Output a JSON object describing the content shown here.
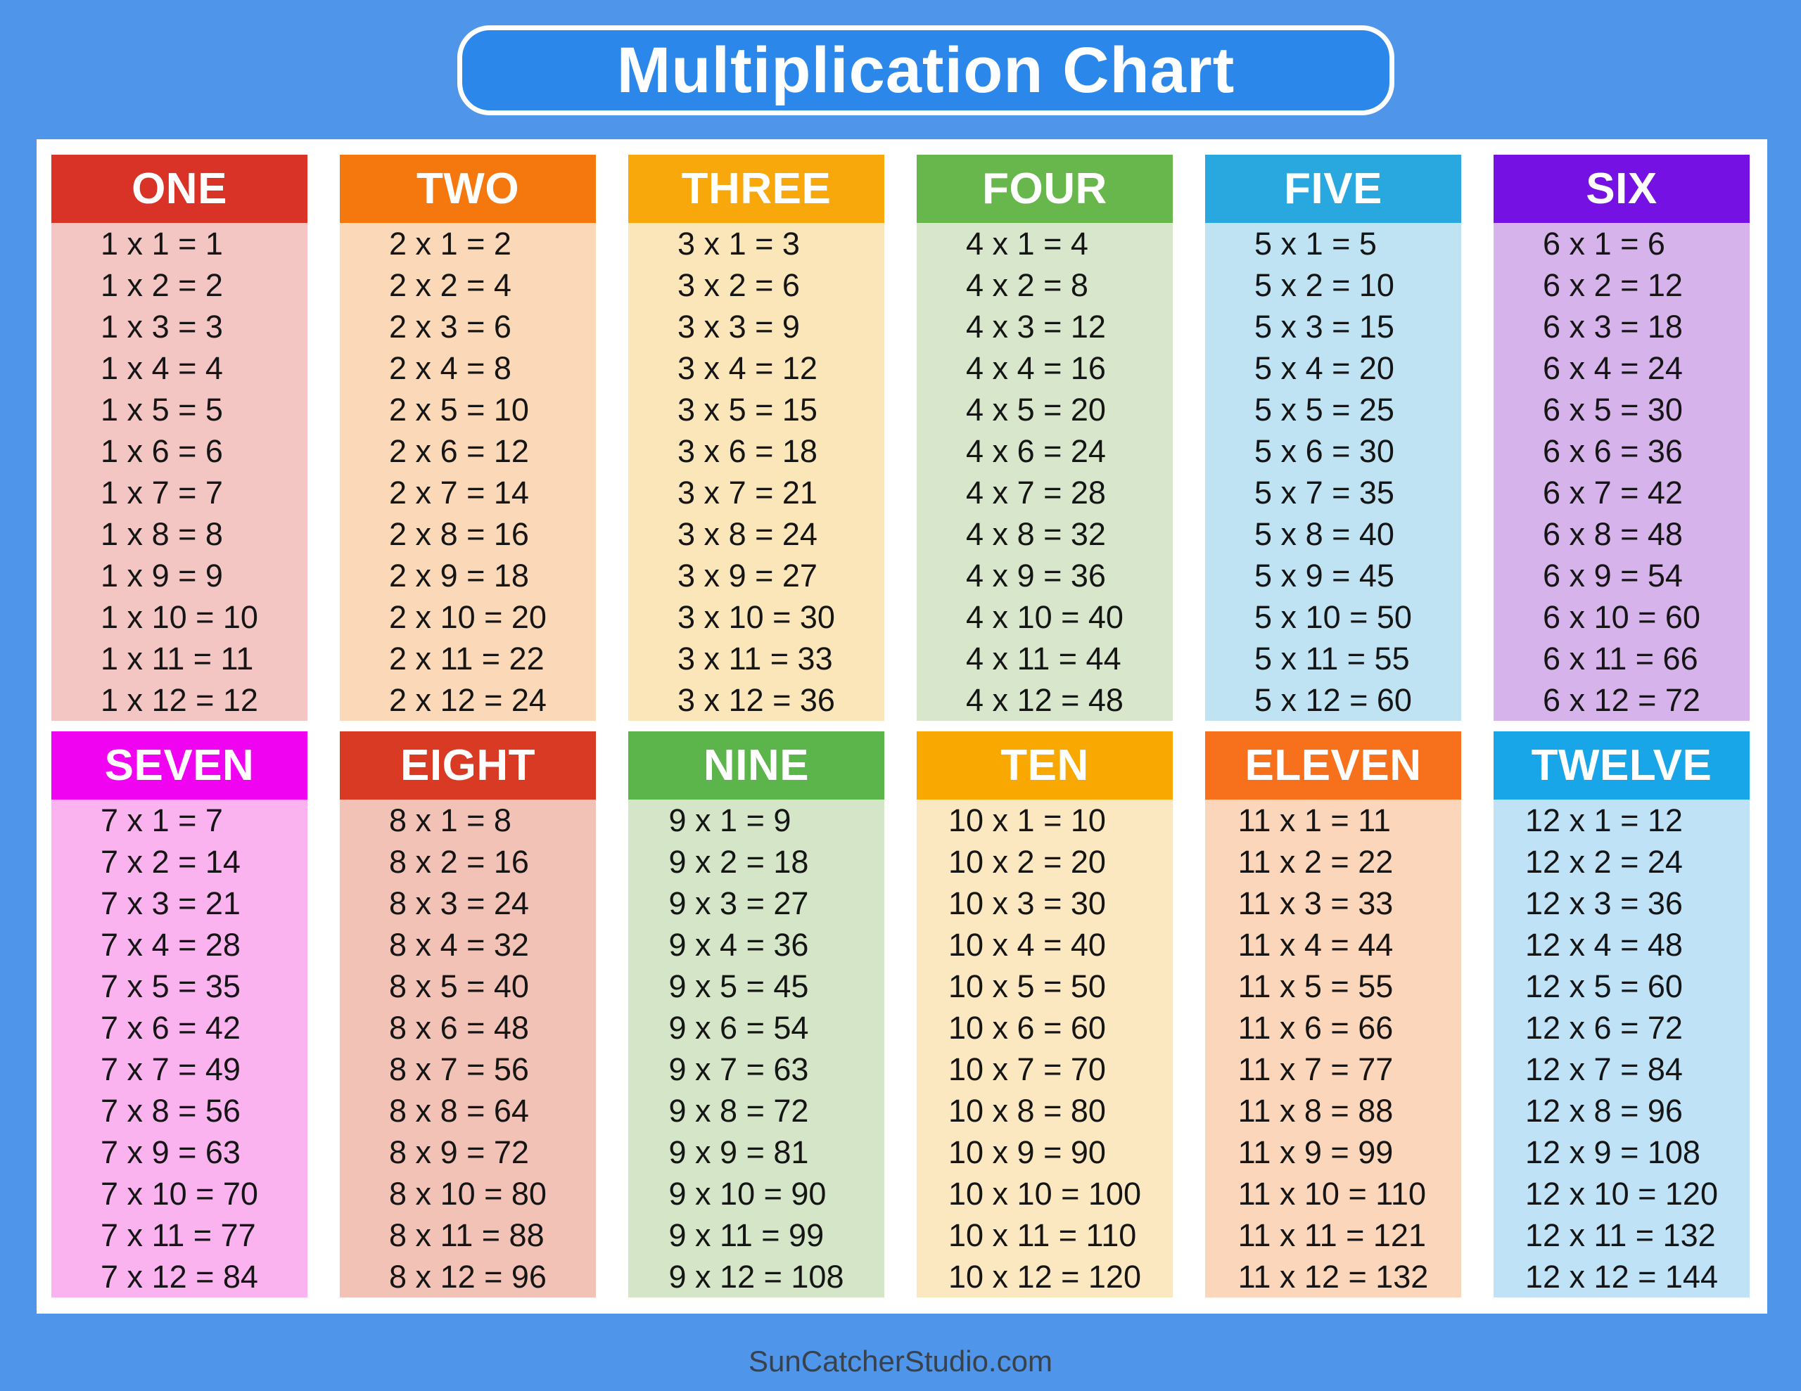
{
  "title": "Multiplication Chart",
  "footer": "SunCatcherStudio.com",
  "colors": {
    "background": "#4f96ea",
    "title_banner": "#2b87ea",
    "title_border": "#ffffff",
    "title_text": "#ffffff",
    "panel": "#ffffff",
    "fact_text": "#151515",
    "header_text": "#ffffff",
    "footer_text": "#39414b"
  },
  "tables": [
    {
      "name": "ONE",
      "header_color": "#d93226",
      "body_color": "#f3c6c4",
      "facts": [
        "1 x 1 = 1",
        "1 x 2 = 2",
        "1 x 3 = 3",
        "1 x 4 = 4",
        "1 x 5 = 5",
        "1 x 6 = 6",
        "1 x 7 = 7",
        "1 x 8 = 8",
        "1 x 9 = 9",
        "1 x 10 = 10",
        "1 x 11 = 11",
        "1 x 12 = 12"
      ]
    },
    {
      "name": "TWO",
      "header_color": "#f5780f",
      "body_color": "#fbd9b8",
      "facts": [
        "2 x 1 = 2",
        "2 x 2 = 4",
        "2 x 3 = 6",
        "2 x 4 = 8",
        "2 x 5 = 10",
        "2 x 6 = 12",
        "2 x 7 = 14",
        "2 x 8 = 16",
        "2 x 9 = 18",
        "2 x 10 = 20",
        "2 x 11 = 22",
        "2 x 12 = 24"
      ]
    },
    {
      "name": "THREE",
      "header_color": "#f8a80b",
      "body_color": "#fbe6ba",
      "facts": [
        "3 x 1 = 3",
        "3 x 2 = 6",
        "3 x 3 = 9",
        "3 x 4 = 12",
        "3 x 5 = 15",
        "3 x 6 = 18",
        "3 x 7 = 21",
        "3 x 8 = 24",
        "3 x 9 = 27",
        "3 x 10 = 30",
        "3 x 11 = 33",
        "3 x 12 = 36"
      ]
    },
    {
      "name": "FOUR",
      "header_color": "#68b74c",
      "body_color": "#d8e7cb",
      "facts": [
        "4 x 1 = 4",
        "4 x 2 = 8",
        "4 x 3 = 12",
        "4 x 4 = 16",
        "4 x 5 = 20",
        "4 x 6 = 24",
        "4 x 7 = 28",
        "4 x 8 = 32",
        "4 x 9 = 36",
        "4 x 10 = 40",
        "4 x 11 = 44",
        "4 x 12 = 48"
      ]
    },
    {
      "name": "FIVE",
      "header_color": "#29a8e0",
      "body_color": "#bfe3f2",
      "facts": [
        "5 x 1 = 5",
        "5 x 2 = 10",
        "5 x 3 = 15",
        "5 x 4 = 20",
        "5 x 5 = 25",
        "5 x 6 = 30",
        "5 x 7 = 35",
        "5 x 8 = 40",
        "5 x 9 = 45",
        "5 x 10 = 50",
        "5 x 11 = 55",
        "5 x 12 = 60"
      ]
    },
    {
      "name": "SIX",
      "header_color": "#7611e3",
      "body_color": "#d6b3eb",
      "facts": [
        "6 x 1 = 6",
        "6 x 2 = 12",
        "6 x 3 = 18",
        "6 x 4 = 24",
        "6 x 5 = 30",
        "6 x 6 = 36",
        "6 x 7 = 42",
        "6 x 8 = 48",
        "6 x 9 = 54",
        "6 x 10 = 60",
        "6 x 11 = 66",
        "6 x 12 = 72"
      ]
    },
    {
      "name": "SEVEN",
      "header_color": "#f003f0",
      "body_color": "#fbb3f0",
      "facts": [
        "7 x 1 = 7",
        "7 x 2 = 14",
        "7 x 3 = 21",
        "7 x 4 = 28",
        "7 x 5 = 35",
        "7 x 6 = 42",
        "7 x 7 = 49",
        "7 x 8 = 56",
        "7 x 9 = 63",
        "7 x 10 = 70",
        "7 x 11 = 77",
        "7 x 12 = 84"
      ]
    },
    {
      "name": "EIGHT",
      "header_color": "#d93a24",
      "body_color": "#f2c2b6",
      "facts": [
        "8 x 1 = 8",
        "8 x 2 = 16",
        "8 x 3 = 24",
        "8 x 4 = 32",
        "8 x 5 = 40",
        "8 x 6 = 48",
        "8 x 7 = 56",
        "8 x 8 = 64",
        "8 x 9 = 72",
        "8 x 10 = 80",
        "8 x 11 = 88",
        "8 x 12 = 96"
      ]
    },
    {
      "name": "NINE",
      "header_color": "#5cb54a",
      "body_color": "#d4e5c8",
      "facts": [
        "9 x 1 = 9",
        "9 x 2 = 18",
        "9 x 3 = 27",
        "9 x 4 = 36",
        "9 x 5 = 45",
        "9 x 6 = 54",
        "9 x 7 = 63",
        "9 x 8 = 72",
        "9 x 9 = 81",
        "9 x 10 = 90",
        "9 x 11 = 99",
        "9 x 12 = 108"
      ]
    },
    {
      "name": "TEN",
      "header_color": "#f8a800",
      "body_color": "#fbe8c0",
      "facts": [
        "10 x 1 = 10",
        "10 x 2 = 20",
        "10 x 3 = 30",
        "10 x 4 = 40",
        "10 x 5 = 50",
        "10 x 6 = 60",
        "10 x 7 = 70",
        "10 x 8 = 80",
        "10 x 9 = 90",
        "10 x 10 = 100",
        "10 x 11 = 110",
        "10 x 12 = 120"
      ]
    },
    {
      "name": "ELEVEN",
      "header_color": "#f7711c",
      "body_color": "#fbd6bb",
      "facts": [
        "11 x 1 = 11",
        "11 x 2 = 22",
        "11 x 3 = 33",
        "11 x 4 = 44",
        "11 x 5 = 55",
        "11 x 6 = 66",
        "11 x 7 = 77",
        "11 x 8 = 88",
        "11 x 9 = 99",
        "11 x 10 = 110",
        "11 x 11 = 121",
        "11 x 12 = 132"
      ]
    },
    {
      "name": "TWELVE",
      "header_color": "#18a6e8",
      "body_color": "#bfe2f7",
      "facts": [
        "12 x 1 = 12",
        "12 x 2 = 24",
        "12 x 3 = 36",
        "12 x 4 = 48",
        "12 x 5 = 60",
        "12 x 6 = 72",
        "12 x 7 = 84",
        "12 x 8 = 96",
        "12 x 9 = 108",
        "12 x 10 = 120",
        "12 x 11 = 132",
        "12 x 12 = 144"
      ]
    }
  ]
}
